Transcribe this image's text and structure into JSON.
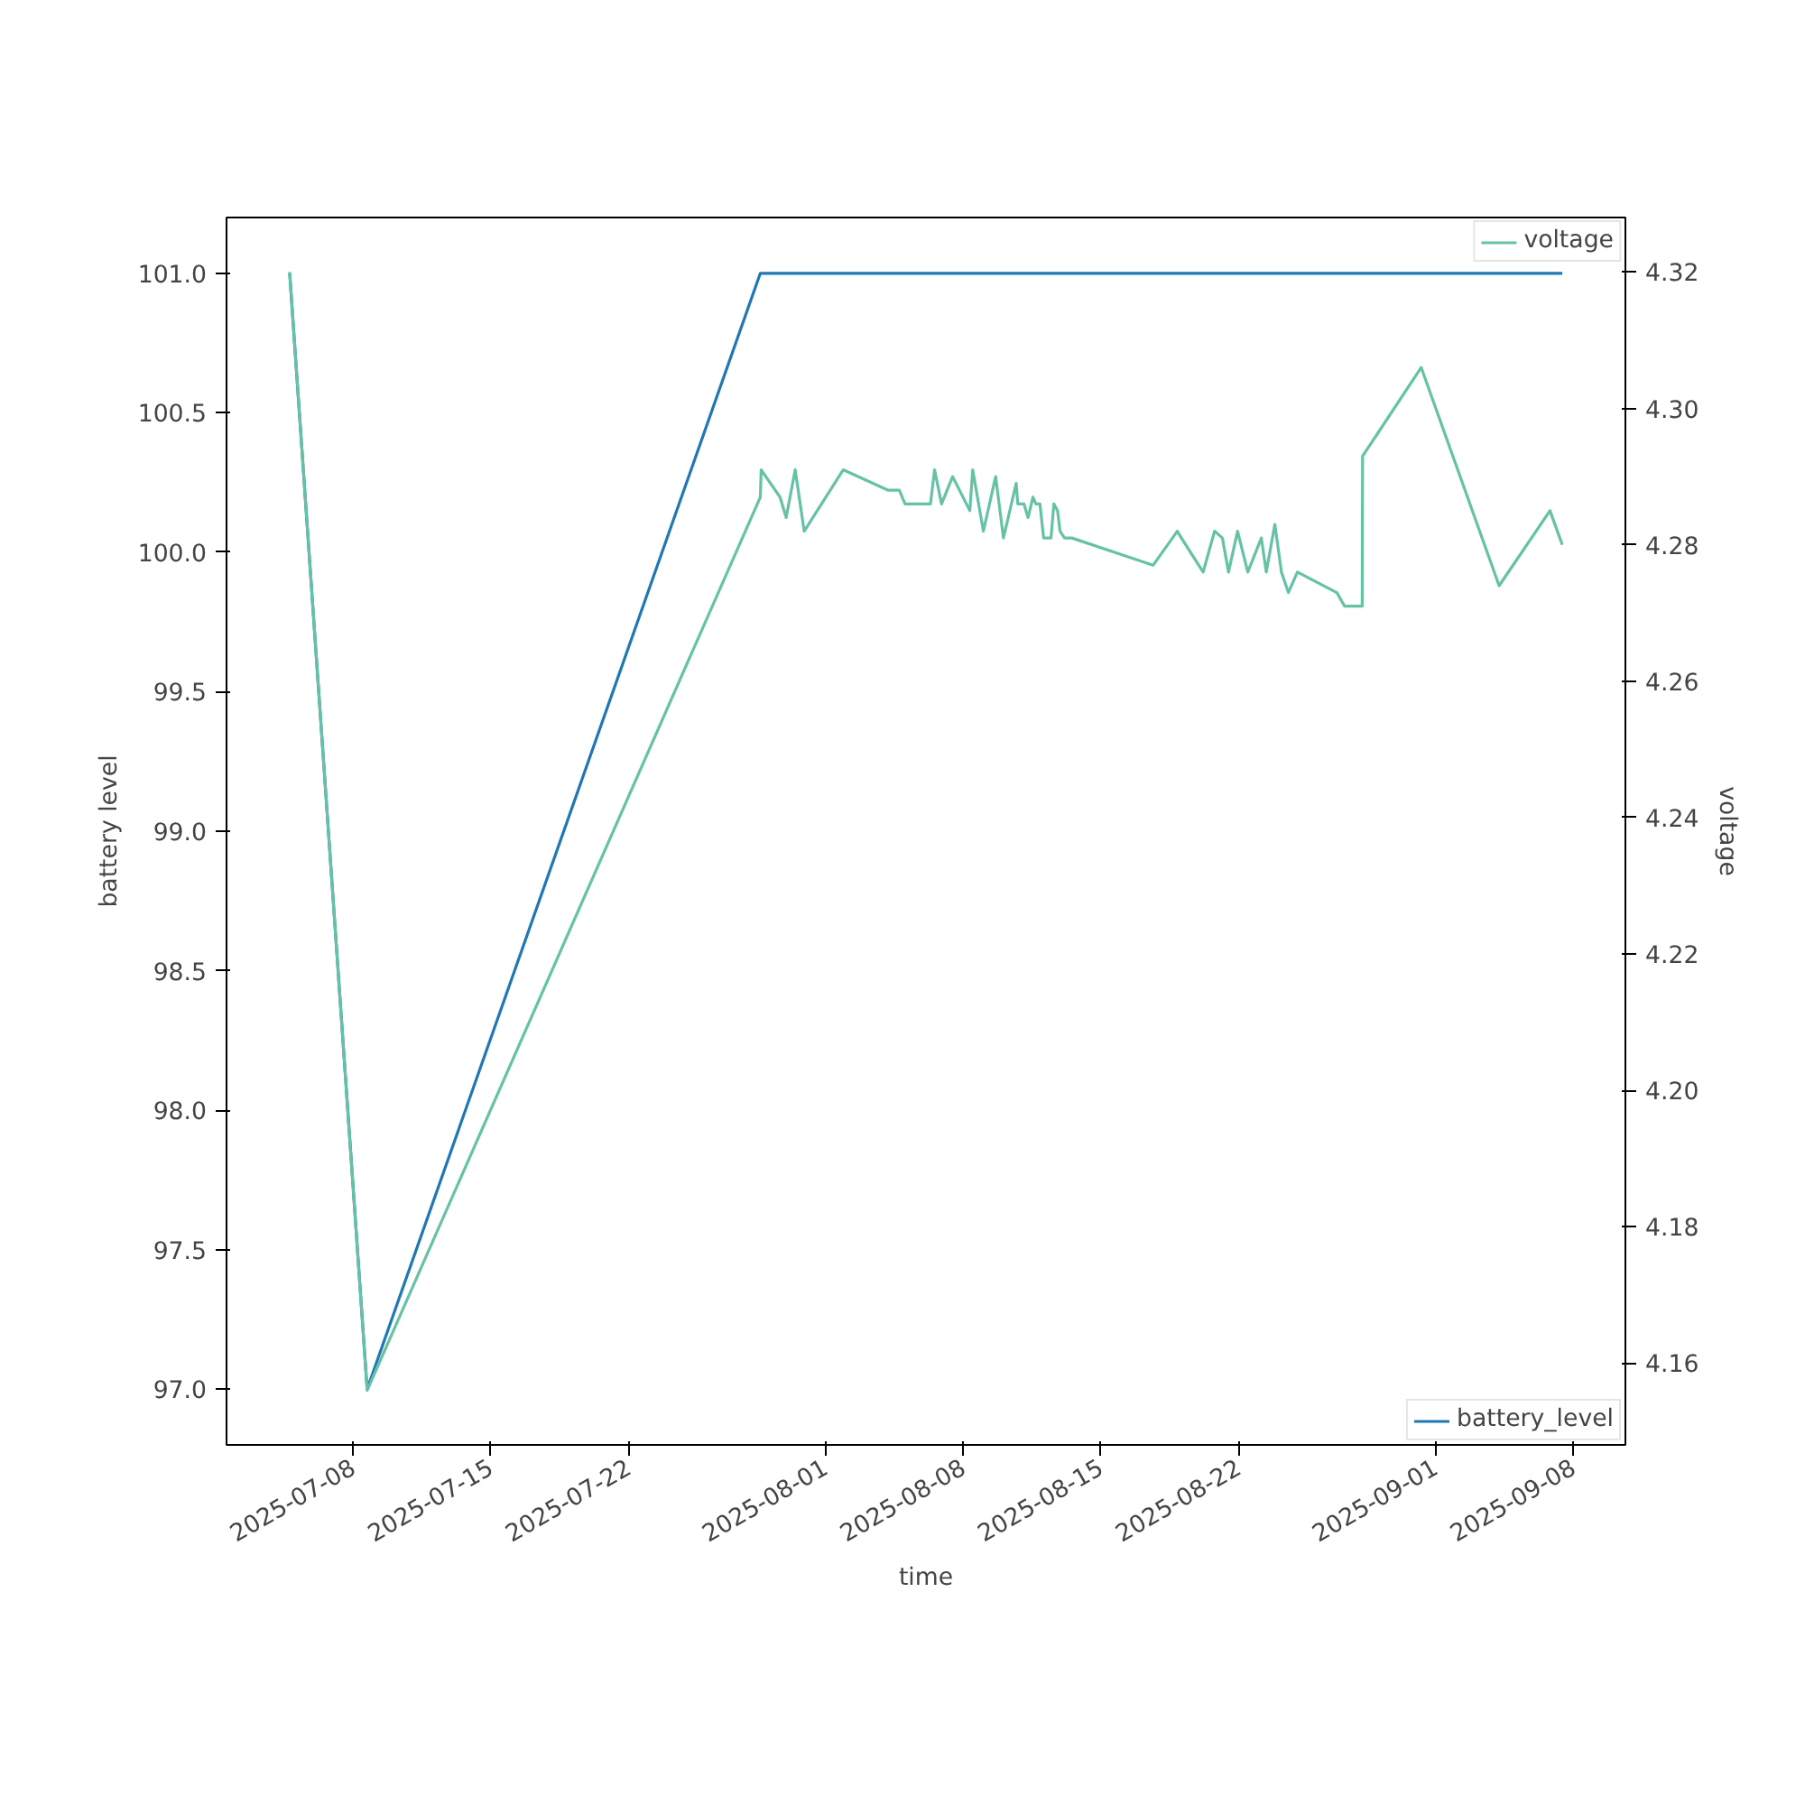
{
  "chart_data": {
    "type": "line",
    "xlabel": "time",
    "ylabel": "battery level",
    "y2label": "voltage",
    "xlim": [
      "2025-07-01T14:00",
      "2025-09-10T16:00"
    ],
    "xticks": [
      "2025-07-08",
      "2025-07-15",
      "2025-07-22",
      "2025-08-01",
      "2025-08-08",
      "2025-08-15",
      "2025-08-22",
      "2025-09-01",
      "2025-09-08"
    ],
    "ylim": [
      96.8,
      101.2
    ],
    "yticks": [
      {
        "value": 97,
        "label": "97.0"
      },
      {
        "value": 97.5,
        "label": "97.5"
      },
      {
        "value": 98,
        "label": "98.0"
      },
      {
        "value": 98.5,
        "label": "98.5"
      },
      {
        "value": 99,
        "label": "99.0"
      },
      {
        "value": 99.5,
        "label": "99.5"
      },
      {
        "value": 100,
        "label": "100.0"
      },
      {
        "value": 100.5,
        "label": "100.5"
      },
      {
        "value": 101,
        "label": "101.0"
      }
    ],
    "y2lim": [
      4.148,
      4.328
    ],
    "y2ticks": [
      {
        "value": 4.16,
        "label": "4.16"
      },
      {
        "value": 4.18,
        "label": "4.18"
      },
      {
        "value": 4.2,
        "label": "4.20"
      },
      {
        "value": 4.22,
        "label": "4.22"
      },
      {
        "value": 4.24,
        "label": "4.24"
      },
      {
        "value": 4.26,
        "label": "4.26"
      },
      {
        "value": 4.28,
        "label": "4.28"
      },
      {
        "value": 4.3,
        "label": "4.30"
      },
      {
        "value": 4.32,
        "label": "4.32"
      }
    ],
    "grid": false,
    "legend": "right",
    "marker": "none",
    "line_style": "solid",
    "series": [
      {
        "name": "battery_level",
        "color": "#1f77b4",
        "x": [
          "2025-07-04T19:00",
          "2025-07-08T17:30",
          "2025-07-28T17:00",
          "2025-09-07T11:00"
        ],
        "values": [
          101,
          97,
          101,
          101
        ]
      },
      {
        "name": "voltage",
        "color": "#66c2a5",
        "axis": "y2",
        "x": [
          "2025-07-04T19:00",
          "2025-07-08T17:30",
          "2025-07-28T17:00",
          "2025-07-28T18:00",
          "2025-07-29T17:00",
          "2025-07-30T00:30",
          "2025-07-30T11:30",
          "2025-07-30T22:30",
          "2025-08-01T22:00",
          "2025-08-04T05:00",
          "2025-08-04T18:30",
          "2025-08-05T01:30",
          "2025-08-06T08:30",
          "2025-08-06T13:30",
          "2025-08-06T22:00",
          "2025-08-07T11:30",
          "2025-08-08T08:30",
          "2025-08-08T12:00",
          "2025-08-09T01:00",
          "2025-08-09T16:00",
          "2025-08-10T01:30",
          "2025-08-10T17:00",
          "2025-08-10T19:00",
          "2025-08-11T02:30",
          "2025-08-11T07:30",
          "2025-08-11T13:30",
          "2025-08-11T17:00",
          "2025-08-11T22:00",
          "2025-08-12T02:30",
          "2025-08-12T11:30",
          "2025-08-12T15:00",
          "2025-08-12T19:30",
          "2025-08-12T22:30",
          "2025-08-13T04:00",
          "2025-08-13T13:00",
          "2025-08-17T16:00",
          "2025-08-18T21:30",
          "2025-08-19T02:30",
          "2025-08-20T05:00",
          "2025-08-20T19:00",
          "2025-08-21T04:30",
          "2025-08-21T12:00",
          "2025-08-21T23:00",
          "2025-08-22T11:30",
          "2025-08-23T04:00",
          "2025-08-23T10:00",
          "2025-08-23T20:30",
          "2025-08-24T04:30",
          "2025-08-24T13:00",
          "2025-08-25T00:00",
          "2025-08-27T00:00",
          "2025-08-27T09:30",
          "2025-08-28T07:00",
          "2025-08-28T07:30",
          "2025-08-31T07:00",
          "2025-09-04T06:00",
          "2025-09-06T20:00",
          "2025-09-07T11:00"
        ],
        "values": [
          4.32,
          4.156,
          4.287,
          4.291,
          4.287,
          4.284,
          4.291,
          4.282,
          4.291,
          4.288,
          4.288,
          4.286,
          4.286,
          4.291,
          4.286,
          4.29,
          4.285,
          4.291,
          4.282,
          4.29,
          4.281,
          4.289,
          4.286,
          4.286,
          4.284,
          4.287,
          4.286,
          4.286,
          4.281,
          4.281,
          4.286,
          4.285,
          4.282,
          4.281,
          4.281,
          4.277,
          4.282,
          4.281,
          4.276,
          4.282,
          4.281,
          4.276,
          4.282,
          4.276,
          4.281,
          4.276,
          4.283,
          4.276,
          4.273,
          4.276,
          4.273,
          4.271,
          4.271,
          4.293,
          4.306,
          4.274,
          4.285,
          4.28
        ]
      }
    ]
  }
}
